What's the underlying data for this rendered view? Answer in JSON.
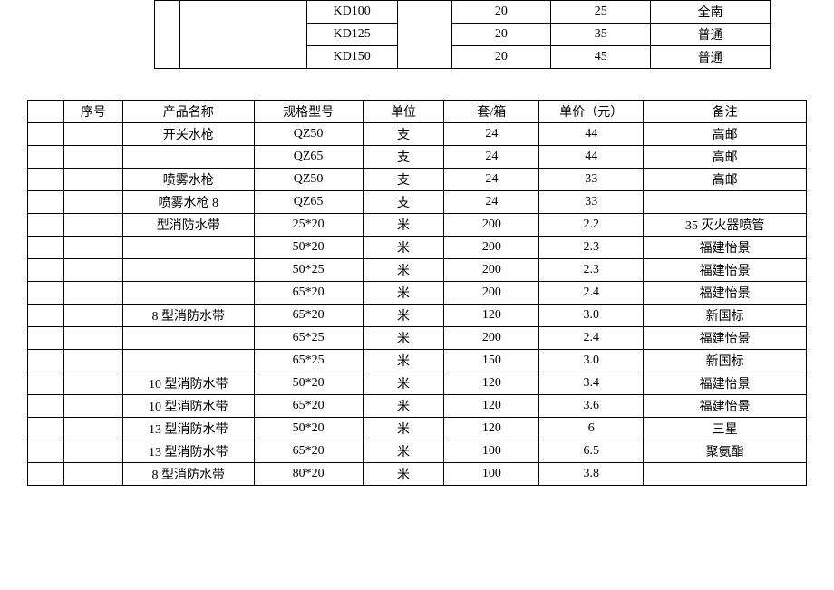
{
  "table1": {
    "rows": [
      {
        "model": "KD100",
        "qty": "20",
        "price": "25",
        "remark": "全南"
      },
      {
        "model": "KD125",
        "qty": "20",
        "price": "35",
        "remark": "普通"
      },
      {
        "model": "KD150",
        "qty": "20",
        "price": "45",
        "remark": "普通"
      }
    ]
  },
  "table2": {
    "header": {
      "seq": "序号",
      "name": "产品名称",
      "spec": "规格型号",
      "unit": "单位",
      "qty": "套/箱",
      "price": "单价（元）",
      "remark": "备注"
    },
    "rows": [
      {
        "name": "开关水枪",
        "spec": "QZ50",
        "unit": "支",
        "qty": "24",
        "price": "44",
        "remark": "高邮"
      },
      {
        "name": "",
        "spec": "QZ65",
        "unit": "支",
        "qty": "24",
        "price": "44",
        "remark": "高邮"
      },
      {
        "name": "喷雾水枪",
        "spec": "QZ50",
        "unit": "支",
        "qty": "24",
        "price": "33",
        "remark": "高邮"
      },
      {
        "name": "喷雾水枪  8",
        "spec": "QZ65",
        "unit": "支",
        "qty": "24",
        "price": "33",
        "remark": ""
      },
      {
        "name": "型消防水带",
        "spec": "25*20",
        "unit": "米",
        "qty": "200",
        "price": "2.2",
        "remark": "35 灭火器喷管"
      },
      {
        "name": "",
        "spec": "50*20",
        "unit": "米",
        "qty": "200",
        "price": "2.3",
        "remark": "福建怡景"
      },
      {
        "name": "",
        "spec": "50*25",
        "unit": "米",
        "qty": "200",
        "price": "2.3",
        "remark": "福建怡景"
      },
      {
        "name": "",
        "spec": "65*20",
        "unit": "米",
        "qty": "200",
        "price": "2.4",
        "remark": "福建怡景"
      },
      {
        "name": "8 型消防水带",
        "spec": "65*20",
        "unit": "米",
        "qty": "120",
        "price": "3.0",
        "remark": "新国标"
      },
      {
        "name": "",
        "spec": "65*25",
        "unit": "米",
        "qty": "200",
        "price": "2.4",
        "remark": "福建怡景"
      },
      {
        "name": "",
        "spec": "65*25",
        "unit": "米",
        "qty": "150",
        "price": "3.0",
        "remark": "新国标"
      },
      {
        "name": "10 型消防水带",
        "spec": "50*20",
        "unit": "米",
        "qty": "120",
        "price": "3.4",
        "remark": "福建怡景"
      },
      {
        "name": "10 型消防水带",
        "spec": "65*20",
        "unit": "米",
        "qty": "120",
        "price": "3.6",
        "remark": "福建怡景"
      },
      {
        "name": "13 型消防水带",
        "spec": "50*20",
        "unit": "米",
        "qty": "120",
        "price": "6",
        "remark": "三星"
      },
      {
        "name": "13 型消防水带",
        "spec": "65*20",
        "unit": "米",
        "qty": "100",
        "price": "6.5",
        "remark": "聚氨酯"
      },
      {
        "name": "8 型消防水带",
        "spec": "80*20",
        "unit": "米",
        "qty": "100",
        "price": "3.8",
        "remark": ""
      }
    ]
  }
}
